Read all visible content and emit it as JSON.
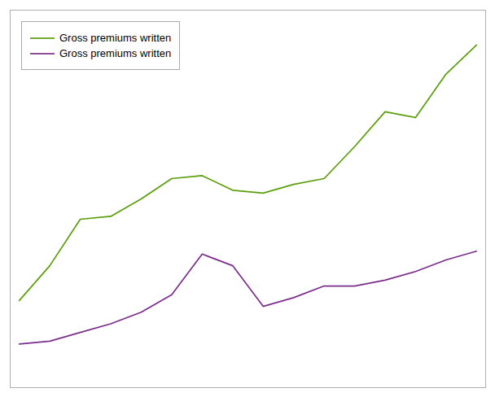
{
  "chart_data": {
    "type": "line",
    "x": [
      0,
      1,
      2,
      3,
      4,
      5,
      6,
      7,
      8,
      9,
      10,
      11,
      12,
      13,
      14,
      15
    ],
    "xlim": [
      -0.3,
      15.3
    ],
    "xticks": [],
    "ylim": [
      0,
      130
    ],
    "yticks": [],
    "tick_labels": false,
    "grid": false,
    "legend": "upper left",
    "series": [
      {
        "name": "Gross premiums written",
        "color": "#5a9e0a",
        "values": [
          30,
          42,
          58,
          59,
          65,
          72,
          73,
          68,
          67,
          70,
          72,
          83,
          95,
          93,
          108,
          118
        ]
      },
      {
        "name": "Gross premiums written",
        "color": "#7b2d8b",
        "values": [
          15,
          16,
          19,
          22,
          26,
          32,
          46,
          42,
          28,
          31,
          35,
          35,
          37,
          40,
          44,
          47
        ]
      }
    ]
  }
}
